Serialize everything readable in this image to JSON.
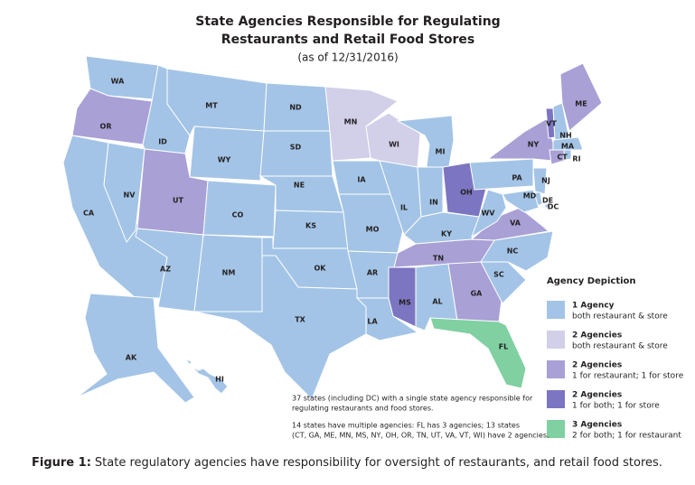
{
  "title_lines": [
    "State Agencies Responsible for Regulating",
    "Restaurants and Retail Food Stores"
  ],
  "subtitle": "(as of 12/31/2016)",
  "states": [
    {
      "label": "WA",
      "color": "#a3c4e6"
    },
    {
      "label": "OR",
      "color": "#a9a0d6"
    },
    {
      "label": "CA",
      "color": "#a3c4e6"
    },
    {
      "label": "NV",
      "color": "#a3c4e6"
    },
    {
      "label": "ID",
      "color": "#a3c4e6"
    },
    {
      "label": "MT",
      "color": "#a3c4e6"
    },
    {
      "label": "WY",
      "color": "#a3c4e6"
    },
    {
      "label": "UT",
      "color": "#a9a0d6"
    },
    {
      "label": "AZ",
      "color": "#a3c4e6"
    },
    {
      "label": "CO",
      "color": "#a3c4e6"
    },
    {
      "label": "NM",
      "color": "#a3c4e6"
    },
    {
      "label": "ND",
      "color": "#a3c4e6"
    },
    {
      "label": "SD",
      "color": "#a3c4e6"
    },
    {
      "label": "NE",
      "color": "#a3c4e6"
    },
    {
      "label": "KS",
      "color": "#a3c4e6"
    },
    {
      "label": "OK",
      "color": "#a3c4e6"
    },
    {
      "label": "TX",
      "color": "#a3c4e6"
    },
    {
      "label": "MN",
      "color": "#d2cfe9"
    },
    {
      "label": "IA",
      "color": "#a3c4e6"
    },
    {
      "label": "MO",
      "color": "#a3c4e6"
    },
    {
      "label": "AR",
      "color": "#a3c4e6"
    },
    {
      "label": "LA",
      "color": "#a3c4e6"
    },
    {
      "label": "WI",
      "color": "#d2cfe9"
    },
    {
      "label": "IL",
      "color": "#a3c4e6"
    },
    {
      "label": "MI",
      "color": "#a3c4e6"
    },
    {
      "label": "IN",
      "color": "#a3c4e6"
    },
    {
      "label": "OH",
      "color": "#7c75c1"
    },
    {
      "label": "KY",
      "color": "#a3c4e6"
    },
    {
      "label": "TN",
      "color": "#a9a0d6"
    },
    {
      "label": "MS",
      "color": "#7c75c1"
    },
    {
      "label": "AL",
      "color": "#a3c4e6"
    },
    {
      "label": "GA",
      "color": "#a9a0d6"
    },
    {
      "label": "FL",
      "color": "#80d0a2"
    },
    {
      "label": "SC",
      "color": "#a3c4e6"
    },
    {
      "label": "NC",
      "color": "#a3c4e6"
    },
    {
      "label": "VA",
      "color": "#a9a0d6"
    },
    {
      "label": "WV",
      "color": "#a3c4e6"
    },
    {
      "label": "PA",
      "color": "#a3c4e6"
    },
    {
      "label": "NY",
      "color": "#a9a0d6"
    },
    {
      "label": "VT",
      "color": "#7c75c1"
    },
    {
      "label": "NH",
      "color": "#a3c4e6"
    },
    {
      "label": "ME",
      "color": "#a9a0d6"
    },
    {
      "label": "MA",
      "color": "#a3c4e6"
    },
    {
      "label": "CT",
      "color": "#a9a0d6"
    },
    {
      "label": "RI",
      "color": "#a3c4e6"
    },
    {
      "label": "NJ",
      "color": "#a3c4e6"
    },
    {
      "label": "DE",
      "color": "#a3c4e6"
    },
    {
      "label": "MD",
      "color": "#a3c4e6"
    },
    {
      "label": "DC",
      "color": "#a3c4e6"
    },
    {
      "label": "AK",
      "color": "#a3c4e6"
    },
    {
      "label": "HI",
      "color": "#a3c4e6"
    }
  ],
  "legend": {
    "title": "Agency Depiction",
    "items": [
      {
        "title": "1 Agency",
        "description": "both restaurant & store",
        "color": "#a3c4e6"
      },
      {
        "title": "2 Agencies",
        "description": "both restaurant & store",
        "color": "#d2cfe9"
      },
      {
        "title": "2 Agencies",
        "description": "1 for restaurant; 1 for store",
        "color": "#a9a0d6"
      },
      {
        "title": "2 Agencies",
        "description": "1 for both; 1 for store",
        "color": "#7c75c1"
      },
      {
        "title": "3 Agencies",
        "description": "2 for both; 1 for restaurant",
        "color": "#80d0a2"
      }
    ]
  },
  "notes": [
    [
      "37 states (including DC) with a single state agency responsible for",
      "regulating restaurants and food stores."
    ],
    [
      "14 states have multiple agencies: FL has 3 agencies; 13 states",
      "(CT, GA, ME, MN, MS, NY, OH, OR, TN, UT, VA, VT, WI) have 2 agencies."
    ]
  ],
  "caption": {
    "label": "Figure 1:",
    "text": "State regulatory agencies have responsibility for oversight of restaurants, and retail food stores."
  }
}
